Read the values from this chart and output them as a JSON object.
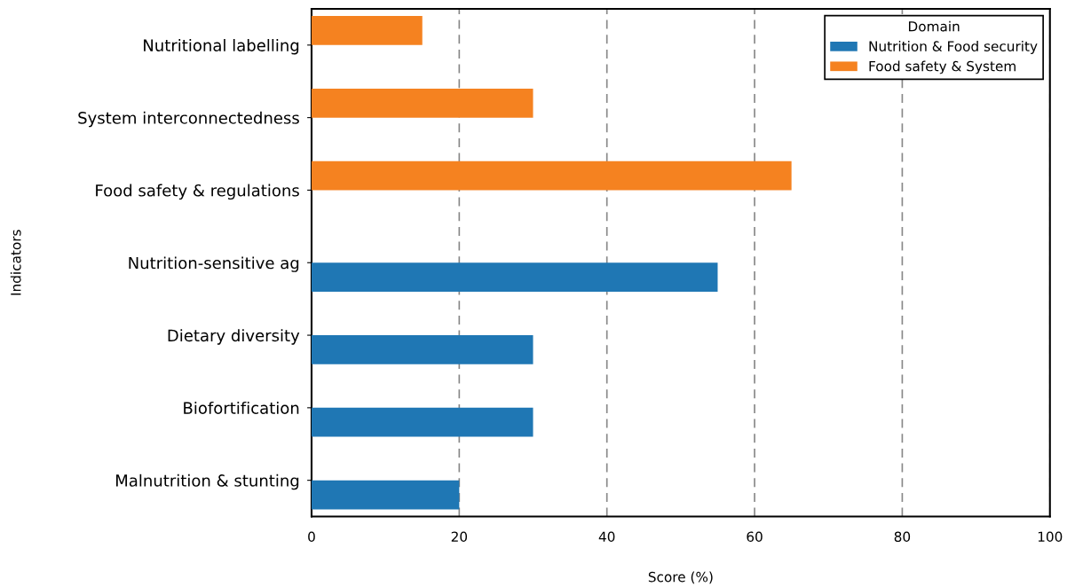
{
  "chart_data": {
    "type": "bar",
    "orientation": "horizontal",
    "xlabel": "Score (%)",
    "ylabel": "Indicators",
    "legend_title": "Domain",
    "legend": "top right",
    "grid": "x",
    "categories": [
      "Nutritional labelling",
      "System interconnectedness",
      "Food safety & regulations",
      "Nutrition-sensitive ag",
      "Dietary diversity",
      "Biofortification",
      "Malnutrition & stunting"
    ],
    "series": [
      {
        "name": "Nutrition & Food security",
        "color": "#1f77b4",
        "values": [
          null,
          null,
          null,
          55,
          30,
          30,
          20
        ]
      },
      {
        "name": "Food safety & System",
        "color": "#f58220",
        "values": [
          15,
          30,
          65,
          null,
          null,
          null,
          null
        ]
      }
    ],
    "xlim": [
      0,
      100
    ],
    "xticks": [
      0,
      20,
      40,
      60,
      80,
      100
    ]
  }
}
